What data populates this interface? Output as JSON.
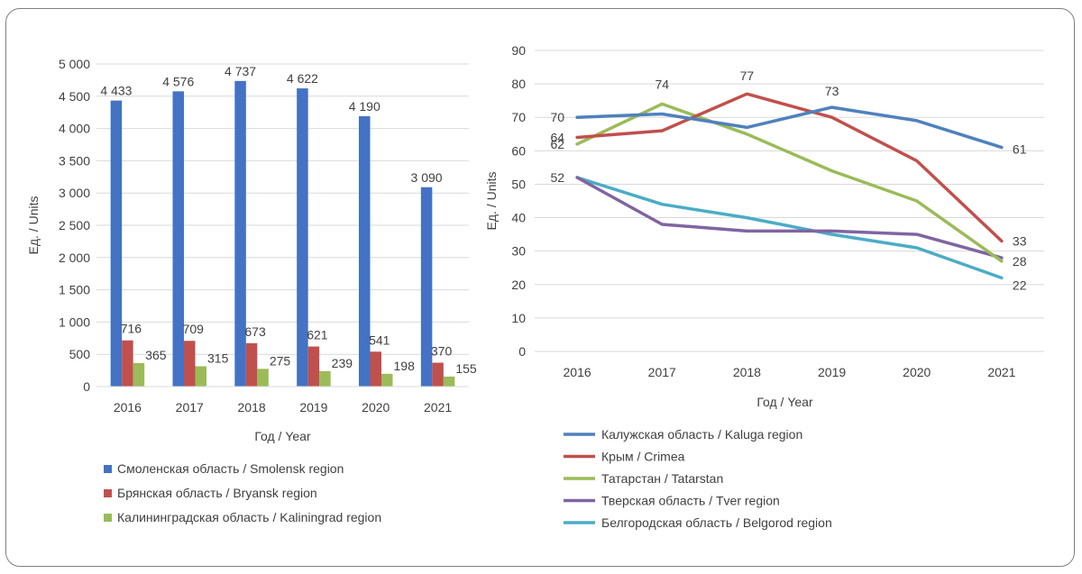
{
  "chart_data": [
    {
      "type": "bar",
      "xlabel": "Год / Year",
      "ylabel": "Ед. / Units",
      "ylim": [
        0,
        5000
      ],
      "yticks": [
        "0",
        "500",
        "1 000",
        "1 500",
        "2 000",
        "2 500",
        "3 000",
        "3 500",
        "4 000",
        "4 500",
        "5 000"
      ],
      "categories": [
        "2016",
        "2017",
        "2018",
        "2019",
        "2020",
        "2021"
      ],
      "grid": true,
      "legend_position": "bottom",
      "series": [
        {
          "name": "Смоленская область / Smolensk region",
          "color": "#4472c4",
          "values": [
            4433,
            4576,
            4737,
            4622,
            4190,
            3090
          ],
          "labels": [
            "4 433",
            "4 576",
            "4 737",
            "4 622",
            "4 190",
            "3 090"
          ]
        },
        {
          "name": "Брянская область / Bryansk region",
          "color": "#c0504d",
          "values": [
            716,
            709,
            673,
            621,
            541,
            370
          ],
          "labels": [
            "716",
            "709",
            "673",
            "621",
            "541",
            "370"
          ]
        },
        {
          "name": "Калининградская область / Kaliningrad region",
          "color": "#9bbb59",
          "values": [
            365,
            315,
            275,
            239,
            198,
            155
          ],
          "labels": [
            "365",
            "315",
            "275",
            "239",
            "198",
            "155"
          ]
        }
      ]
    },
    {
      "type": "line",
      "xlabel": "Год / Year",
      "ylabel": "Ед. / Units",
      "ylim": [
        0,
        90
      ],
      "yticks": [
        "0",
        "10",
        "20",
        "30",
        "40",
        "50",
        "60",
        "70",
        "80",
        "90"
      ],
      "categories": [
        "2016",
        "2017",
        "2018",
        "2019",
        "2020",
        "2021"
      ],
      "grid": true,
      "legend_position": "bottom",
      "series": [
        {
          "name": "Калужская область / Kaluga region",
          "color": "#4f81bd",
          "values": [
            70,
            71,
            67,
            73,
            69,
            61
          ]
        },
        {
          "name": "Крым / Crimea",
          "color": "#c0504d",
          "values": [
            64,
            66,
            77,
            70,
            57,
            33
          ]
        },
        {
          "name": "Татарстан / Tatarstan",
          "color": "#9bbb59",
          "values": [
            62,
            74,
            65,
            54,
            45,
            27
          ]
        },
        {
          "name": "Тверская область / Tver region",
          "color": "#8064a2",
          "values": [
            52,
            38,
            36,
            36,
            35,
            28
          ]
        },
        {
          "name": "Белгородская область / Belgorod region",
          "color": "#4bacc6",
          "values": [
            52,
            44,
            40,
            35,
            31,
            22
          ]
        }
      ],
      "annotations": [
        {
          "text": "70",
          "series": 0,
          "index": 0
        },
        {
          "text": "64",
          "series": 1,
          "index": 0
        },
        {
          "text": "62",
          "series": 2,
          "index": 0
        },
        {
          "text": "52",
          "series": 3,
          "index": 0
        },
        {
          "text": "74",
          "series": 2,
          "index": 1
        },
        {
          "text": "77",
          "series": 1,
          "index": 2
        },
        {
          "text": "73",
          "series": 0,
          "index": 3
        },
        {
          "text": "61",
          "series": 0,
          "index": 5
        },
        {
          "text": "33",
          "series": 1,
          "index": 5
        },
        {
          "text": "28",
          "series": 3,
          "index": 5
        },
        {
          "text": "22",
          "series": 4,
          "index": 5
        }
      ]
    }
  ]
}
